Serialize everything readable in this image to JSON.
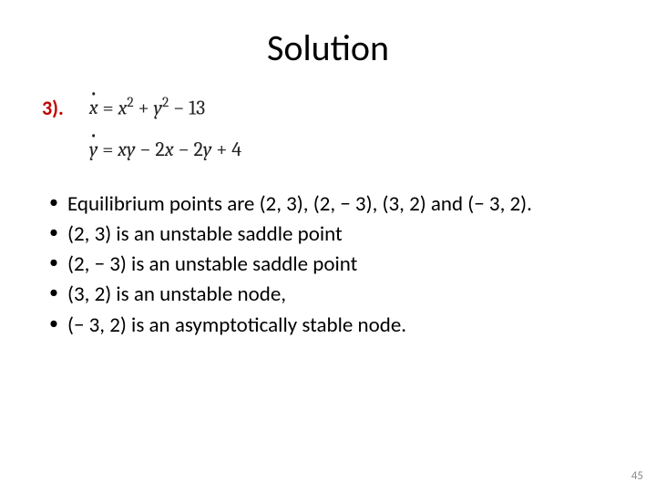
{
  "title": "Solution",
  "problem_number": "3).",
  "equations": {
    "eq1_html": "<span class='dotvar'>x</span> = <span class='var'>x</span><sup>2</sup> + <span class='var'>y</span><sup>2</sup> − 13",
    "eq2_html": "<span class='dotvar'>y</span> = <span class='var'>xy</span> − 2<span class='var'>x</span> − 2<span class='var'>y</span> + 4"
  },
  "bullets": [
    " Equilibrium points are (2, 3), (2, − 3), (3, 2) and (− 3, 2).",
    " (2, 3) is an unstable saddle point",
    " (2, − 3) is an unstable saddle point",
    " (3, 2) is an unstable node,",
    "(− 3, 2) is an asymptotically stable node."
  ],
  "page_number": "45",
  "colors": {
    "title": "#000000",
    "problem_number": "#c00000",
    "text": "#000000",
    "page_number": "#8a8a8a",
    "background": "#ffffff"
  },
  "fontsizes": {
    "title": 40,
    "problem_number": 22,
    "equations": 22,
    "bullets": 23,
    "page_number": 13
  }
}
